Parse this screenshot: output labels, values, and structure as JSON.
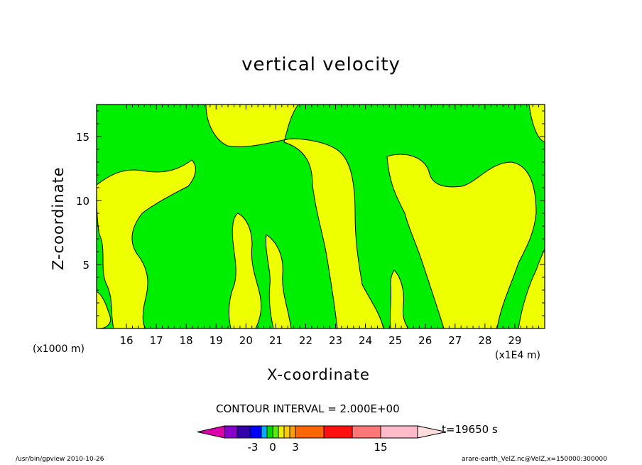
{
  "chart_data": {
    "type": "contour",
    "title": "vertical velocity",
    "xlabel": "X-coordinate",
    "ylabel": "Z-coordinate",
    "x_unit_left": "(x1000 m)",
    "x_unit_right": "(x1E4 m)",
    "x_ticks": [
      "16",
      "17",
      "18",
      "19",
      "20",
      "21",
      "22",
      "23",
      "24",
      "25",
      "26",
      "27",
      "28",
      "29"
    ],
    "y_ticks": [
      "5",
      "10",
      "15"
    ],
    "xlim": [
      15,
      30
    ],
    "ylim": [
      0,
      17.5
    ],
    "contour_interval": "CONTOUR INTERVAL = 2.000E+00",
    "timestamp": "t=19650 s",
    "colorbar_labels": [
      "-3",
      "0",
      "3",
      "15"
    ],
    "colorbar_colors": [
      "#dd00aa",
      "#8800cc",
      "#3300aa",
      "#0000ff",
      "#00aaff",
      "#00dd00",
      "#55ee00",
      "#eeee00",
      "#ffcc00",
      "#ffa000",
      "#ff6600",
      "#ff1111",
      "#ff7777",
      "#ffbbcc",
      "#ffdddd"
    ],
    "fill_colors": {
      "positive": "#eeff00",
      "negative": "#00ee00"
    },
    "footer_left": "/usr/bin/gpview   2010-10-26",
    "footer_right": "arare-earth_VelZ.nc@VelZ,x=150000:300000"
  }
}
